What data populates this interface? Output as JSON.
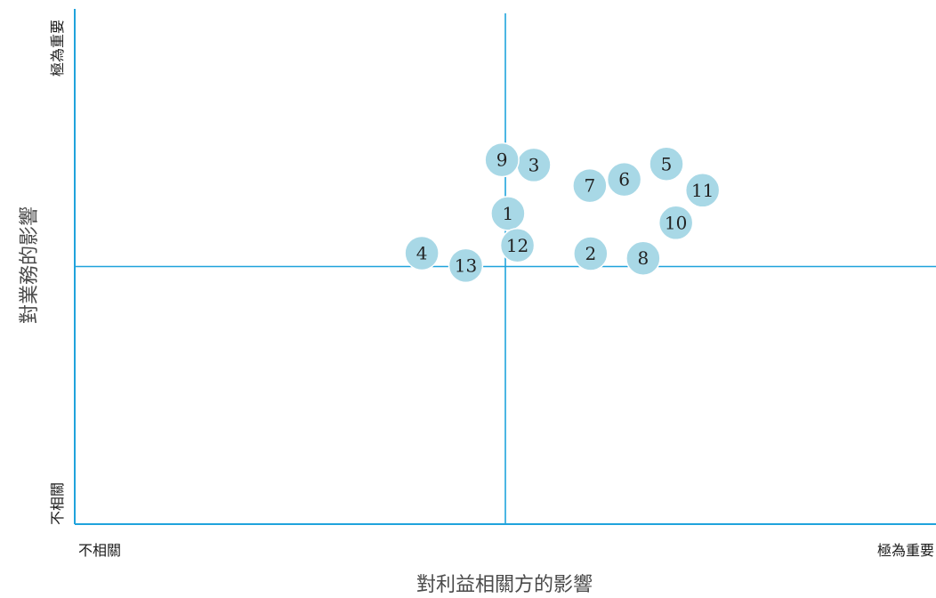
{
  "chart_data": {
    "type": "scatter",
    "xlabel": "對利益相關方的影響",
    "ylabel": "對業務的影響",
    "x_tick_labels": {
      "low": "不相關",
      "high": "極為重要"
    },
    "y_tick_labels": {
      "low": "不相關",
      "high": "極為重要"
    },
    "xlim": [
      0,
      100
    ],
    "ylim": [
      0,
      100
    ],
    "x_divider": 50,
    "y_divider": 50,
    "grid": false,
    "colors": {
      "axis": "#1fa3dc",
      "marker": "#a8d8e6",
      "marker_text": "#222222"
    },
    "points": [
      {
        "label": "1",
        "x": 50.3,
        "y": 60.3
      },
      {
        "label": "2",
        "x": 59.9,
        "y": 52.5
      },
      {
        "label": "3",
        "x": 53.3,
        "y": 69.7
      },
      {
        "label": "4",
        "x": 40.3,
        "y": 52.6
      },
      {
        "label": "5",
        "x": 68.7,
        "y": 69.9
      },
      {
        "label": "6",
        "x": 63.8,
        "y": 66.9
      },
      {
        "label": "7",
        "x": 59.8,
        "y": 65.7
      },
      {
        "label": "8",
        "x": 66.0,
        "y": 51.6
      },
      {
        "label": "9",
        "x": 49.6,
        "y": 70.7
      },
      {
        "label": "10",
        "x": 69.8,
        "y": 58.5
      },
      {
        "label": "11",
        "x": 72.9,
        "y": 64.8
      },
      {
        "label": "12",
        "x": 51.4,
        "y": 54.1
      },
      {
        "label": "13",
        "x": 45.4,
        "y": 50.2
      }
    ]
  }
}
